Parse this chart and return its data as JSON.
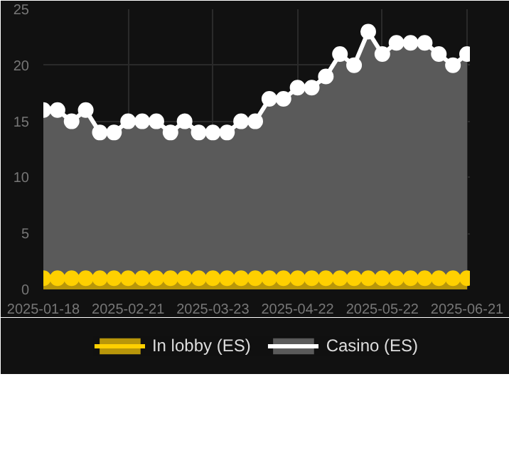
{
  "chart_data": {
    "type": "area",
    "categories": [
      "2025-01-18",
      null,
      null,
      null,
      null,
      null,
      "2025-02-21",
      null,
      null,
      null,
      null,
      null,
      "2025-03-23",
      null,
      null,
      null,
      null,
      null,
      "2025-04-22",
      null,
      null,
      null,
      null,
      null,
      "2025-05-22",
      null,
      null,
      null,
      null,
      null,
      "2025-06-21"
    ],
    "series": [
      {
        "name": "In lobby (ES)",
        "color": "#ffd000",
        "values": [
          1,
          1,
          1,
          1,
          1,
          1,
          1,
          1,
          1,
          1,
          1,
          1,
          1,
          1,
          1,
          1,
          1,
          1,
          1,
          1,
          1,
          1,
          1,
          1,
          1,
          1,
          1,
          1,
          1,
          1,
          1
        ]
      },
      {
        "name": "Casino (ES)",
        "color": "#ffffff",
        "values": [
          16,
          16,
          15,
          16,
          14,
          14,
          15,
          15,
          15,
          14,
          15,
          14,
          14,
          14,
          15,
          15,
          17,
          17,
          18,
          18,
          19,
          21,
          20,
          23,
          21,
          22,
          22,
          22,
          21,
          20,
          21
        ]
      }
    ],
    "ylim": [
      0,
      25
    ],
    "yticks": [
      0,
      5,
      10,
      15,
      20,
      25
    ],
    "grid": true,
    "legend": "bottom",
    "marker": "circle"
  }
}
